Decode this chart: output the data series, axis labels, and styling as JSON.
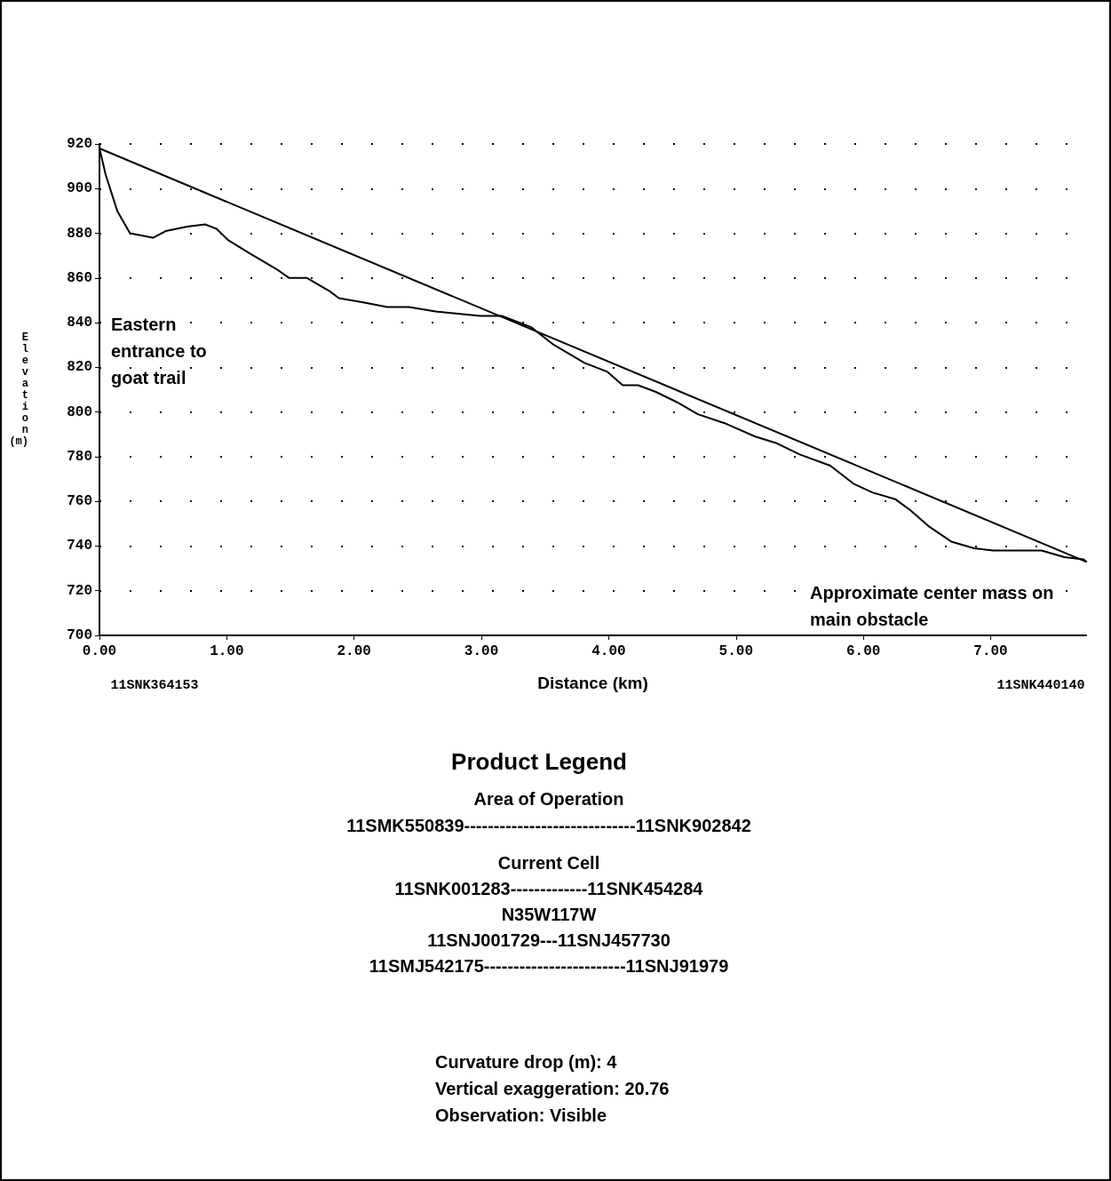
{
  "chart_data": {
    "type": "line",
    "xlabel": "Distance (km)",
    "ylabel": "Elevation (m)",
    "xlim": [
      0,
      7.75
    ],
    "xticks": [
      {
        "value": 0,
        "label": "0.00"
      },
      {
        "value": 1,
        "label": "1.00"
      },
      {
        "value": 2,
        "label": "2.00"
      },
      {
        "value": 3,
        "label": "3.00"
      },
      {
        "value": 4,
        "label": "4.00"
      },
      {
        "value": 5,
        "label": "5.00"
      },
      {
        "value": 6,
        "label": "6.00"
      },
      {
        "value": 7,
        "label": "7.00"
      }
    ],
    "ylim": [
      700,
      920
    ],
    "yticks": [
      700,
      720,
      740,
      760,
      780,
      800,
      820,
      840,
      860,
      880,
      900,
      920
    ],
    "grid": "y",
    "marker": "none",
    "line_style": "solid",
    "series": [
      {
        "color": "#000000",
        "x": [
          0,
          0.05,
          0.14,
          0.24,
          0.42,
          0.52,
          0.69,
          0.83,
          0.92,
          1.01,
          1.18,
          1.39,
          1.49,
          1.63,
          1.81,
          1.88,
          2.08,
          2.26,
          2.43,
          2.64,
          2.99,
          3.16,
          3.39,
          3.57,
          3.81,
          3.99,
          4.11,
          4.23,
          4.37,
          4.55,
          4.7,
          4.91,
          5.15,
          5.32,
          5.5,
          5.74,
          5.92,
          6.07,
          6.25,
          6.37,
          6.51,
          6.69,
          6.87,
          7.02,
          7.4,
          7.58,
          7.73,
          7.75
        ],
        "values": [
          918,
          906,
          890,
          880,
          878,
          881,
          883,
          884,
          882,
          877,
          871,
          864,
          860,
          860,
          854,
          851,
          849,
          847,
          847,
          845,
          843,
          843,
          838,
          830,
          822,
          818,
          812,
          812,
          809,
          804,
          799,
          795,
          789,
          786,
          781,
          776,
          768,
          764,
          761,
          756,
          749,
          742,
          739,
          738,
          738,
          735,
          734,
          733
        ]
      },
      {
        "color": "#000000",
        "x": [
          0,
          7.75
        ],
        "values": [
          918,
          733
        ]
      }
    ],
    "annotations": [
      "Eastern entrance to goat trail",
      "Approximate center mass on main obstacle",
      "11SNK364153",
      "11SNK440140",
      "Product Legend",
      "Area of Operation",
      "11SMK550839-----------------------------11SNK902842",
      "Current Cell",
      "11SNK001283-------------11SNK454284",
      "N35W117W",
      "11SNJ001729---11SNJ457730",
      "11SMJ542175------------------------11SNJ91979",
      "Curvature drop (m): 4",
      "Vertical exaggeration: 20.76",
      "Observation: Visible"
    ]
  }
}
